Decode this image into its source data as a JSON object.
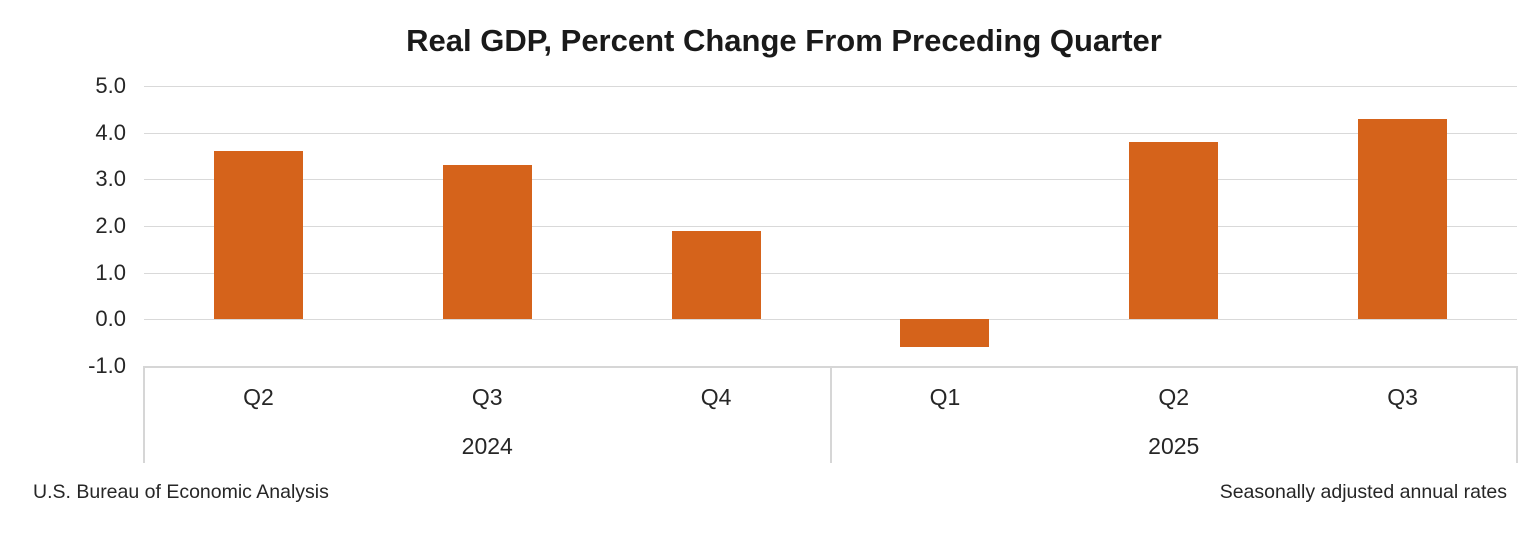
{
  "title": "Real GDP, Percent Change From Preceding Quarter",
  "footer": {
    "left": "U.S. Bureau of Economic Analysis",
    "right": "Seasonally adjusted annual rates"
  },
  "chart_data": {
    "type": "bar",
    "title": "Real GDP, Percent Change From Preceding Quarter",
    "categories": [
      "Q2",
      "Q3",
      "Q4",
      "Q1",
      "Q2",
      "Q3"
    ],
    "groups": [
      {
        "label": "2024",
        "start": 0,
        "end": 2
      },
      {
        "label": "2025",
        "start": 3,
        "end": 5
      }
    ],
    "values": [
      3.6,
      3.3,
      1.9,
      -0.6,
      3.8,
      4.3
    ],
    "xlabel": "",
    "ylabel": "",
    "ylim": [
      -1.0,
      5.0
    ],
    "ytick_step": 1.0,
    "ytick_labels": [
      "5.0",
      "4.0",
      "3.0",
      "2.0",
      "1.0",
      "0.0",
      "-1.0"
    ],
    "grid": true,
    "legend": false,
    "bar_color": "#d5631b",
    "gridline_color": "#d9d9d9",
    "notes": [
      "U.S. Bureau of Economic Analysis",
      "Seasonally adjusted annual rates"
    ]
  }
}
